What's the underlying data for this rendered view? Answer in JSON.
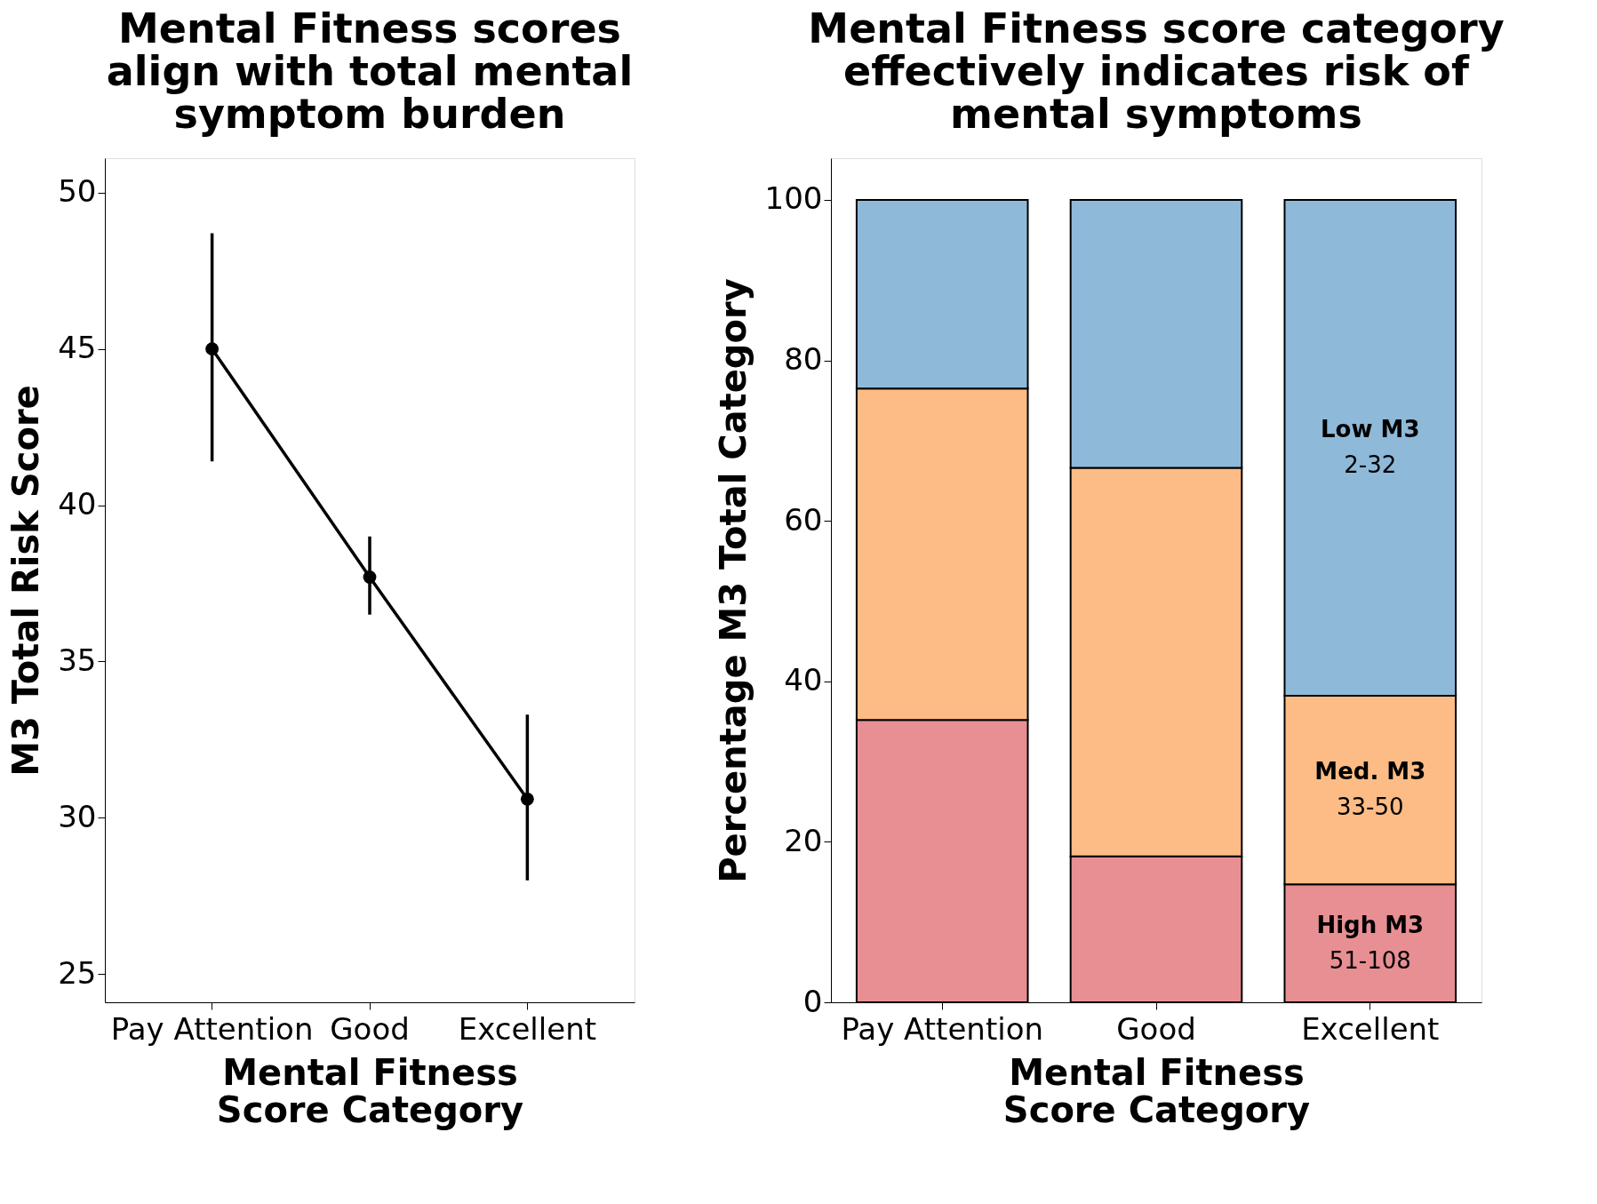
{
  "chart_data": [
    {
      "type": "line",
      "title": "Mental Fitness scores align with total mental symptom burden",
      "xlabel": "Mental Fitness Score Category",
      "ylabel": "M3 Total Risk Score",
      "categories": [
        "Pay Attention",
        "Good",
        "Excellent"
      ],
      "series": [
        {
          "color": "#000000",
          "values": [
            45.0,
            37.7,
            30.6
          ],
          "errors": [
            [
              41.4,
              48.7
            ],
            [
              36.5,
              39.0
            ],
            [
              28.0,
              33.3
            ]
          ]
        }
      ],
      "marker": "circle",
      "line_style": "solid",
      "ylim": [
        24.1,
        51.1
      ],
      "yticks": [
        25,
        30,
        35,
        40,
        45,
        50
      ],
      "grid": false
    },
    {
      "type": "bar",
      "stacked": true,
      "title": "Mental Fitness score category effectively indicates risk of mental symptoms",
      "xlabel": "Mental Fitness Score Category",
      "ylabel": "Percentage M3 Total Category",
      "categories": [
        "Pay Attention",
        "Good",
        "Excellent"
      ],
      "series": [
        {
          "name": "High M3",
          "color": "#e88f93",
          "values": [
            35.2,
            18.2,
            14.7
          ]
        },
        {
          "name": "Med. M3",
          "color": "#fdbc85",
          "values": [
            41.3,
            48.4,
            23.5
          ]
        },
        {
          "name": "Low M3",
          "color": "#8fb9d9",
          "values": [
            23.5,
            33.4,
            61.8
          ]
        }
      ],
      "annotations": [
        "51-108",
        "33-50",
        "2-32"
      ],
      "ylim": [
        0,
        105.2
      ],
      "yticks": [
        0,
        20,
        40,
        60,
        80,
        100
      ],
      "grid": false
    }
  ]
}
